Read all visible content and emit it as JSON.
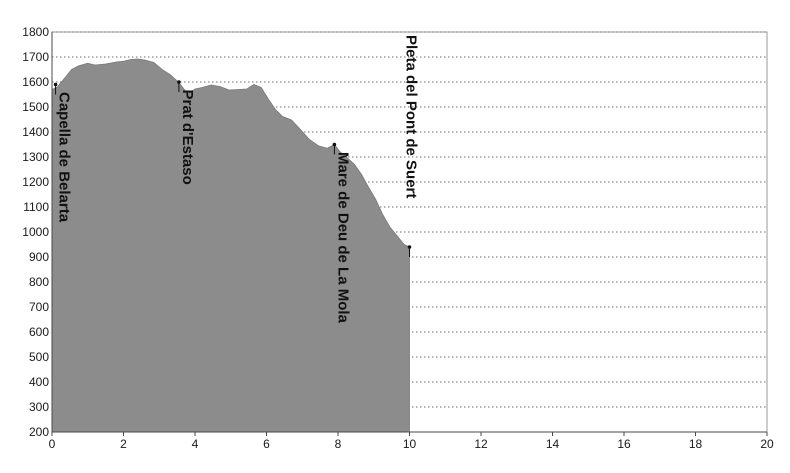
{
  "chart_data": {
    "type": "area",
    "title": "",
    "xlabel": "",
    "ylabel": "",
    "xlim": [
      0,
      20
    ],
    "ylim": [
      200,
      1800
    ],
    "grid": "horizontal dotted",
    "x_ticks": [
      "0",
      "2",
      "4",
      "6",
      "8",
      "10",
      "12",
      "14",
      "16",
      "18",
      "20"
    ],
    "y_ticks": [
      "200",
      "300",
      "400",
      "500",
      "600",
      "700",
      "800",
      "900",
      "1000",
      "1100",
      "1200",
      "1300",
      "1400",
      "1500",
      "1600",
      "1700",
      "1800"
    ],
    "series": [
      {
        "x": [
          0,
          0.15,
          0.35,
          0.55,
          0.75,
          1.0,
          1.2,
          1.5,
          1.8,
          2.0,
          2.2,
          2.4,
          2.6,
          2.85,
          3.1,
          3.3,
          3.55,
          3.8,
          4.0,
          4.2,
          4.45,
          4.7,
          4.95,
          5.2,
          5.45,
          5.65,
          5.85,
          6.05,
          6.25,
          6.45,
          6.7,
          6.95,
          7.2,
          7.45,
          7.7,
          7.9,
          8.05,
          8.25,
          8.45,
          8.65,
          8.85,
          9.05,
          9.25,
          9.45,
          9.65,
          9.85,
          10.0
        ],
        "y": [
          1570,
          1580,
          1615,
          1650,
          1665,
          1675,
          1668,
          1672,
          1680,
          1683,
          1690,
          1692,
          1688,
          1678,
          1648,
          1630,
          1598,
          1552,
          1572,
          1578,
          1588,
          1582,
          1568,
          1570,
          1572,
          1590,
          1578,
          1532,
          1490,
          1462,
          1448,
          1410,
          1370,
          1345,
          1335,
          1350,
          1322,
          1298,
          1272,
          1232,
          1180,
          1132,
          1070,
          1020,
          985,
          950,
          940
        ],
        "color": "#8c8c8c"
      }
    ],
    "annotations": [
      {
        "text": "Capella de Belarta",
        "x": 0.1,
        "y": 1590
      },
      {
        "text": "Prat d'Estaso",
        "x": 3.55,
        "y": 1600
      },
      {
        "text": "Mare de Deu de La Mola",
        "x": 7.9,
        "y": 1350
      },
      {
        "text": "Pleta del Pont de Suert",
        "x": 10.0,
        "y": 940
      }
    ]
  }
}
